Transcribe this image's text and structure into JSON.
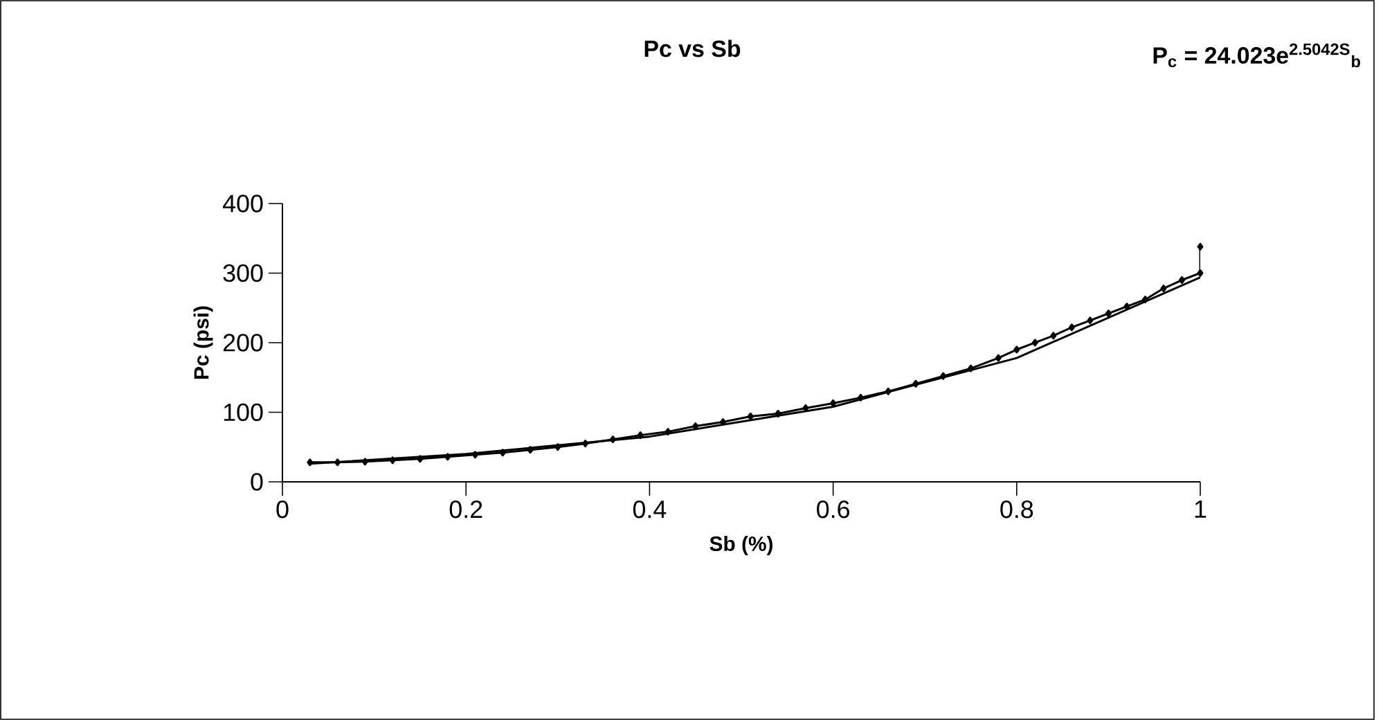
{
  "chart_data": {
    "type": "line",
    "title": "Pc  vs Sb",
    "xlabel": "Sb (%)",
    "ylabel": "Pc (psi)",
    "annotations": [
      "P$_{c}$ = 24.023e$^{2.5042S}$$_{b}$"
    ],
    "xlim": [
      0,
      1
    ],
    "ylim": [
      0,
      400
    ],
    "xticks": [
      0,
      0.2,
      0.4,
      0.6,
      0.8,
      1
    ],
    "yticks": [
      0,
      100,
      200,
      300,
      400
    ],
    "grid": false,
    "line_style": "solid",
    "series": [
      {
        "color": "#000000",
        "marker": "diamond",
        "x": [
          0.03,
          0.06,
          0.09,
          0.12,
          0.15,
          0.18,
          0.21,
          0.24,
          0.27,
          0.3,
          0.33,
          0.36,
          0.39,
          0.42,
          0.45,
          0.48,
          0.51,
          0.54,
          0.57,
          0.6,
          0.63,
          0.66,
          0.69,
          0.72,
          0.75,
          0.78,
          0.8,
          0.82,
          0.84,
          0.86,
          0.88,
          0.9,
          0.92,
          0.94,
          0.96,
          0.98,
          1.0,
          1.0
        ],
        "values": [
          28,
          28,
          29,
          31,
          33,
          36,
          39,
          42,
          46,
          50,
          55,
          61,
          67,
          72,
          80,
          86,
          94,
          98,
          106,
          113,
          121,
          130,
          141,
          152,
          163,
          178,
          190,
          200,
          210,
          222,
          232,
          242,
          252,
          262,
          278,
          290,
          300,
          338
        ]
      },
      {
        "color": "#000000",
        "marker": "none",
        "x": [
          0.03,
          0.2,
          0.4,
          0.6,
          0.8,
          1.0
        ],
        "values": [
          26,
          40,
          65,
          108,
          178,
          294
        ]
      }
    ]
  }
}
